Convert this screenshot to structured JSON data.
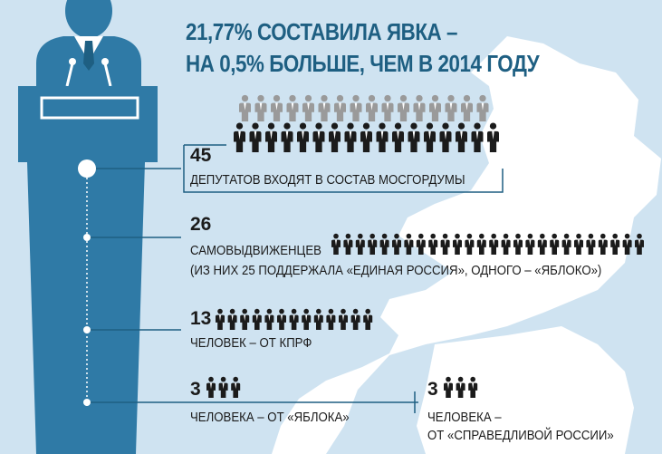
{
  "title": {
    "line1": "21,77% СОСТАВИЛА ЯВКА –",
    "line2": "НА 0,5% БОЛЬШЕ, ЧЕМ В 2014 ГОДУ"
  },
  "colors": {
    "background": "#cfe3f1",
    "map": "#ffffff",
    "tower": "#2f7aa6",
    "tower_dark": "#1e5f82",
    "title": "#1e5f82",
    "people_dark": "#1b1b1b",
    "people_grey": "#9a9a9a"
  },
  "items": [
    {
      "number": "45",
      "caption": "ДЕПУТАТОВ ВХОДЯТ В СОСТАВ МОСГОРДУМЫ",
      "people_count": 45
    },
    {
      "number": "26",
      "caption": "САМОВЫДВИЖЕНЦЕВ",
      "caption2": "(ИЗ НИХ 25 ПОДДЕРЖАЛА «ЕДИНАЯ РОССИЯ», ОДНОГО – «ЯБЛОКО»)",
      "people_count": 26
    },
    {
      "number": "13",
      "caption": "ЧЕЛОВЕК – ОТ КПРФ",
      "people_count": 13
    },
    {
      "number": "3",
      "caption": "ЧЕЛОВЕКА – ОТ «ЯБЛОКА»",
      "people_count": 3
    },
    {
      "number": "3",
      "caption": "ЧЕЛОВЕКА –",
      "caption2": "ОТ «СПРАВЕДЛИВОЙ РОССИИ»",
      "people_count": 3
    }
  ],
  "icons": {
    "speaker": "speaker-at-podium-icon",
    "person": "person-icon",
    "map": "moscow-map-icon"
  }
}
